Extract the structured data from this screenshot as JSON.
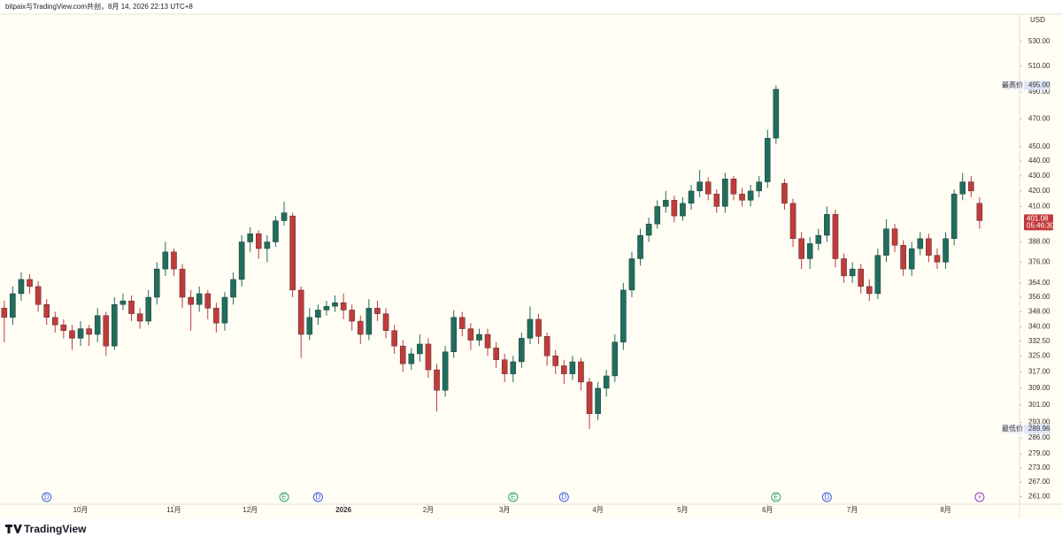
{
  "chart_data": {
    "type": "candlestick",
    "title": "bitpaix与TradingView.com共创，8月 14, 2026 22:13 UTC+8",
    "currency": "USD",
    "brand": "TradingView",
    "log_scale": true,
    "grid": false,
    "up_color": "#1f6e5e",
    "down_color": "#c23b3b",
    "ylim": [
      258,
      553
    ],
    "yticks": [
      {
        "value": 530,
        "label": "530.00"
      },
      {
        "value": 510,
        "label": "510.00"
      },
      {
        "value": 490,
        "label": "490.00"
      },
      {
        "value": 470,
        "label": "470.00"
      },
      {
        "value": 450,
        "label": "450.00"
      },
      {
        "value": 440,
        "label": "440.00"
      },
      {
        "value": 430,
        "label": "430.00"
      },
      {
        "value": 420,
        "label": "420.00"
      },
      {
        "value": 410,
        "label": "410.00"
      },
      {
        "value": 388,
        "label": "388.00"
      },
      {
        "value": 376,
        "label": "376.00"
      },
      {
        "value": 364,
        "label": "364.00"
      },
      {
        "value": 356,
        "label": "356.00"
      },
      {
        "value": 348,
        "label": "348.00"
      },
      {
        "value": 340,
        "label": "340.00"
      },
      {
        "value": 332.5,
        "label": "332.50"
      },
      {
        "value": 325,
        "label": "325.00"
      },
      {
        "value": 317,
        "label": "317.00"
      },
      {
        "value": 309,
        "label": "309.00"
      },
      {
        "value": 301,
        "label": "301.00"
      },
      {
        "value": 293,
        "label": "293.00"
      },
      {
        "value": 286,
        "label": "286.00"
      },
      {
        "value": 279,
        "label": "279.00"
      },
      {
        "value": 273,
        "label": "273.00"
      },
      {
        "value": 267,
        "label": "267.00"
      },
      {
        "value": 261,
        "label": "261.00"
      }
    ],
    "xlim": [
      -0.5,
      119.5
    ],
    "xticks": [
      {
        "value": 9,
        "label": "10月"
      },
      {
        "value": 20,
        "label": "11月"
      },
      {
        "value": 29,
        "label": "12月"
      },
      {
        "value": 40,
        "label": "2026",
        "bold": true
      },
      {
        "value": 50,
        "label": "2月"
      },
      {
        "value": 59,
        "label": "3月"
      },
      {
        "value": 70,
        "label": "4月"
      },
      {
        "value": 80,
        "label": "5月"
      },
      {
        "value": 90,
        "label": "6月"
      },
      {
        "value": 100,
        "label": "7月"
      },
      {
        "value": 111,
        "label": "8月"
      }
    ],
    "open": [
      350,
      345,
      358,
      366,
      362,
      352,
      345,
      341,
      338,
      334,
      339,
      336,
      346,
      330,
      352,
      354,
      347,
      343,
      356,
      372,
      382,
      372,
      356,
      352,
      358,
      350,
      342,
      356,
      366,
      388,
      393,
      384,
      388,
      401,
      404,
      360,
      336,
      345,
      349,
      351,
      353,
      349,
      343,
      336,
      350,
      347,
      338,
      330,
      321,
      326,
      331,
      318,
      308,
      327,
      345,
      339,
      333,
      336,
      329,
      323,
      316,
      322,
      334,
      344,
      335,
      325,
      320,
      316,
      322,
      312,
      297,
      309,
      315,
      332,
      360,
      378,
      392,
      399,
      410,
      414,
      404,
      412,
      420,
      426,
      418,
      410,
      428,
      418,
      414,
      420,
      426,
      456,
      425,
      412,
      390,
      378,
      387,
      392,
      405,
      378,
      368,
      372,
      362,
      358,
      380,
      396,
      386,
      372,
      384,
      390,
      380,
      376,
      390,
      418,
      426,
      412
    ],
    "high": [
      354,
      362,
      370,
      369,
      365,
      355,
      348,
      344,
      341,
      343,
      341,
      350,
      348,
      356,
      358,
      357,
      350,
      360,
      376,
      388,
      384,
      375,
      360,
      362,
      360,
      353,
      359,
      370,
      392,
      397,
      395,
      392,
      404,
      413,
      406,
      362,
      350,
      352,
      354,
      357,
      358,
      352,
      346,
      355,
      354,
      350,
      341,
      333,
      329,
      336,
      334,
      321,
      330,
      349,
      348,
      342,
      339,
      339,
      332,
      326,
      325,
      337,
      351,
      347,
      337,
      328,
      323,
      325,
      324,
      314,
      312,
      318,
      336,
      364,
      382,
      396,
      403,
      414,
      420,
      417,
      416,
      424,
      434,
      429,
      421,
      432,
      430,
      422,
      424,
      430,
      462,
      495,
      428,
      415,
      394,
      391,
      396,
      410,
      408,
      381,
      376,
      375,
      366,
      384,
      402,
      399,
      389,
      388,
      394,
      393,
      384,
      394,
      421,
      432,
      430,
      416
    ],
    "low": [
      332,
      341,
      354,
      358,
      348,
      341,
      337,
      334,
      328,
      330,
      330,
      332,
      325,
      328,
      349,
      343,
      339,
      341,
      352,
      368,
      368,
      350,
      338,
      348,
      344,
      337,
      338,
      352,
      362,
      382,
      378,
      376,
      385,
      398,
      356,
      324,
      333,
      341,
      346,
      348,
      344,
      338,
      331,
      333,
      343,
      334,
      326,
      317,
      318,
      322,
      314,
      298,
      305,
      324,
      335,
      328,
      330,
      325,
      319,
      312,
      312,
      319,
      331,
      331,
      320,
      316,
      311,
      313,
      308,
      289.96,
      294,
      305,
      312,
      328,
      356,
      374,
      388,
      396,
      406,
      400,
      401,
      408,
      416,
      414,
      406,
      406,
      414,
      410,
      410,
      416,
      422,
      452,
      408,
      385,
      372,
      372,
      383,
      388,
      373,
      364,
      364,
      358,
      354,
      355,
      376,
      382,
      368,
      368,
      380,
      376,
      372,
      372,
      386,
      414,
      416,
      396
    ],
    "close": [
      345,
      358,
      366,
      362,
      352,
      345,
      341,
      338,
      334,
      339,
      336,
      346,
      330,
      352,
      354,
      347,
      343,
      356,
      372,
      382,
      372,
      356,
      352,
      358,
      350,
      342,
      356,
      366,
      388,
      393,
      384,
      388,
      401,
      406,
      360,
      336,
      345,
      349,
      351,
      353,
      349,
      343,
      336,
      350,
      347,
      338,
      330,
      321,
      326,
      331,
      318,
      308,
      327,
      345,
      339,
      333,
      336,
      329,
      323,
      316,
      322,
      334,
      344,
      335,
      325,
      320,
      316,
      322,
      312,
      297,
      309,
      315,
      332,
      360,
      378,
      392,
      399,
      410,
      414,
      404,
      412,
      420,
      426,
      418,
      410,
      428,
      418,
      414,
      420,
      426,
      456,
      492,
      412,
      390,
      378,
      387,
      392,
      405,
      378,
      368,
      372,
      362,
      358,
      380,
      396,
      386,
      372,
      384,
      390,
      380,
      376,
      390,
      418,
      426,
      420,
      401.08
    ],
    "high_marker": {
      "text": "最高价",
      "value": 495,
      "label": "495.00"
    },
    "low_marker": {
      "text": "最低价",
      "value": 289.96,
      "label": "289.96"
    },
    "last_price": {
      "value": 401.08,
      "label": "401.08",
      "countdown": "05:46:30"
    },
    "events": [
      {
        "index": 5,
        "label": "D",
        "color": "#3b5bdb"
      },
      {
        "index": 33,
        "label": "E",
        "color": "#2f9e6e"
      },
      {
        "index": 37,
        "label": "D",
        "color": "#3b5bdb"
      },
      {
        "index": 60,
        "label": "E",
        "color": "#2f9e6e"
      },
      {
        "index": 66,
        "label": "D",
        "color": "#3b5bdb"
      },
      {
        "index": 91,
        "label": "E",
        "color": "#2f9e6e"
      },
      {
        "index": 97,
        "label": "D",
        "color": "#3b5bdb"
      },
      {
        "index": 115,
        "label": "⚡",
        "color": "#9c36b5"
      }
    ]
  }
}
